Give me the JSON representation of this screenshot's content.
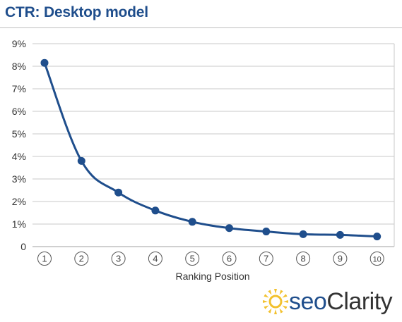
{
  "title": "CTR: Desktop model",
  "logo": {
    "part1": "seo",
    "part2": "Clarity"
  },
  "colors": {
    "line": "#1f4e8c",
    "grid": "#c8c8c8",
    "title": "#1f4e8c",
    "logo_sun": "#f2c12e"
  },
  "chart_data": {
    "type": "line",
    "title": "CTR: Desktop model",
    "xlabel": "Ranking Position",
    "ylabel": "",
    "x": [
      1,
      2,
      3,
      4,
      5,
      6,
      7,
      8,
      9,
      10
    ],
    "x_tick_labels": [
      "1",
      "2",
      "3",
      "4",
      "5",
      "6",
      "7",
      "8",
      "9",
      "10"
    ],
    "y_tick_labels": [
      "0",
      "1%",
      "2%",
      "3%",
      "4%",
      "5%",
      "6%",
      "7%",
      "8%",
      "9%"
    ],
    "ylim": [
      0,
      9
    ],
    "grid": true,
    "series": [
      {
        "values": [
          8.15,
          3.8,
          2.4,
          1.6,
          1.1,
          0.82,
          0.67,
          0.55,
          0.52,
          0.45
        ]
      }
    ]
  }
}
